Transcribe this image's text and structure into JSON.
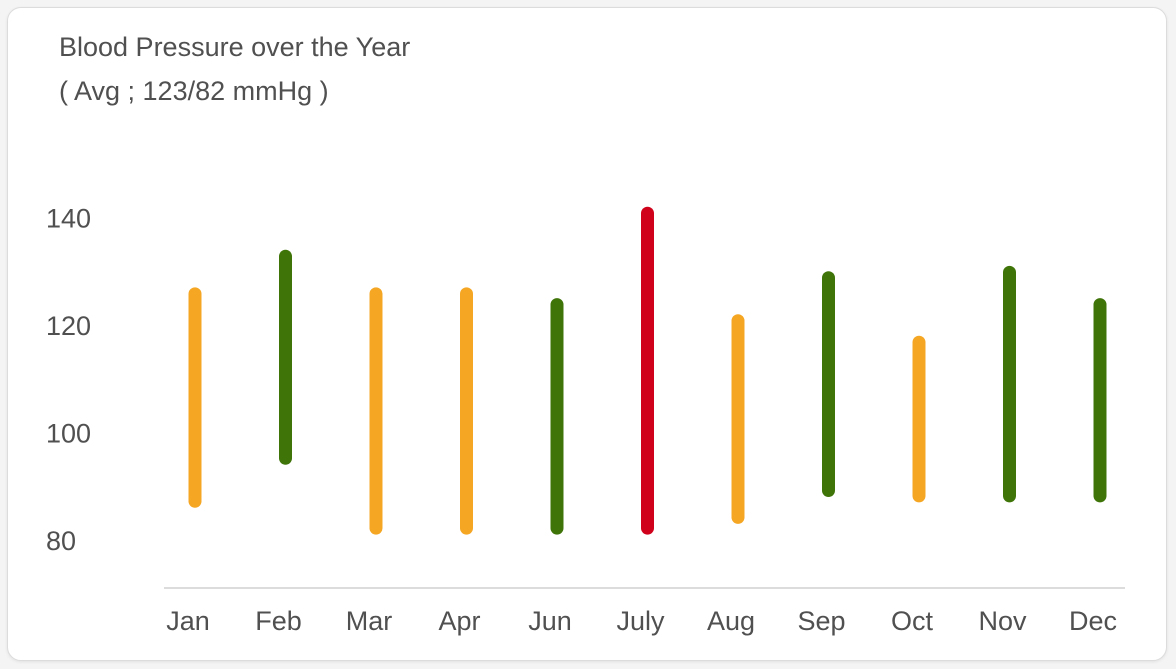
{
  "chart_data": {
    "type": "bar",
    "subtype": "range",
    "title": "Blood Pressure over the Year",
    "subtitle": "( Avg ; 123/82 mmHg )",
    "categories": [
      "Jan",
      "Feb",
      "Mar",
      "Apr",
      "Jun",
      "July",
      "Aug",
      "Sep",
      "Oct",
      "Nov",
      "Dec"
    ],
    "ranges": [
      {
        "low": 86,
        "high": 127,
        "status": "elevated"
      },
      {
        "low": 94,
        "high": 134,
        "status": "normal"
      },
      {
        "low": 81,
        "high": 127,
        "status": "elevated"
      },
      {
        "low": 81,
        "high": 127,
        "status": "elevated"
      },
      {
        "low": 81,
        "high": 125,
        "status": "normal"
      },
      {
        "low": 81,
        "high": 142,
        "status": "high"
      },
      {
        "low": 83,
        "high": 122,
        "status": "elevated"
      },
      {
        "low": 88,
        "high": 130,
        "status": "normal"
      },
      {
        "low": 87,
        "high": 118,
        "status": "elevated"
      },
      {
        "low": 87,
        "high": 131,
        "status": "normal"
      },
      {
        "low": 87,
        "high": 125,
        "status": "normal"
      }
    ],
    "yticks": [
      80,
      100,
      120,
      140
    ],
    "ylim": [
      70,
      142
    ],
    "grid": false,
    "xlabel": "",
    "ylabel": ""
  },
  "colors": {
    "normal": "#3f7409",
    "elevated": "#f5a623",
    "high": "#d0021b",
    "axis": "#d0d0d0",
    "text": "#505050"
  }
}
